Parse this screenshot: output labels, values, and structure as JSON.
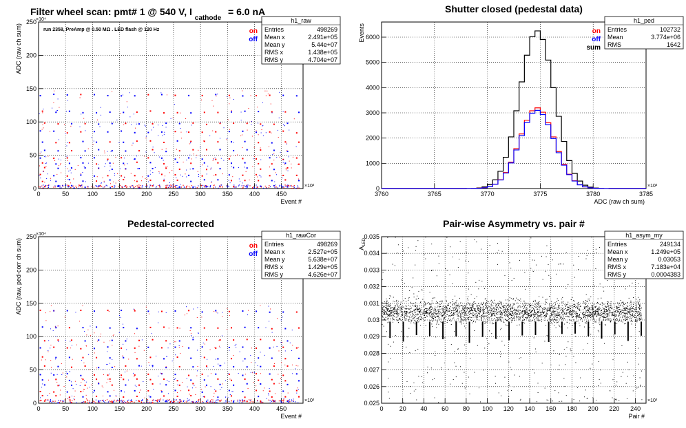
{
  "page": {
    "main_title_prefix": "Filter wheel scan: pmt#   1 @   540 V, I",
    "main_title_sub": "cathode",
    "main_title_suffix": "= 6.0 nA",
    "run_note": "run 2358, PreAmp @ 0.50 MΩ . LED flash @  120 Hz"
  },
  "legend_colors": {
    "on": "#ff0000",
    "off": "#0000ff",
    "sum": "#000000"
  },
  "chart_data": [
    {
      "id": "raw",
      "type": "scatter",
      "title": "",
      "xlabel": "Event #",
      "ylabel": "ADC (raw ch sum)",
      "x_exponent": "×10³",
      "y_exponent": "×10⁴",
      "xlim": [
        0,
        490
      ],
      "ylim": [
        0,
        250
      ],
      "xticks": [
        0,
        50,
        100,
        150,
        200,
        250,
        300,
        350,
        400,
        450
      ],
      "yticks": [
        0,
        50,
        100,
        150,
        200,
        250
      ],
      "grid": true,
      "legend": {
        "position": "top-right",
        "entries": [
          {
            "label": "on",
            "color": "#ff0000"
          },
          {
            "label": "off",
            "color": "#0000ff"
          }
        ]
      },
      "stats": {
        "title": "h1_raw",
        "rows": [
          [
            "Entries",
            "498269"
          ],
          [
            "Mean x",
            "2.491e+05"
          ],
          [
            "Mean y",
            "5.44e+07"
          ],
          [
            "RMS x",
            "1.438e+05"
          ],
          [
            "RMS y",
            "4.704e+07"
          ]
        ]
      },
      "band_levels": [
        140,
        115,
        97,
        85,
        70,
        57,
        45,
        38,
        30,
        20,
        12,
        3
      ],
      "period": 25,
      "series": [
        {
          "name": "on",
          "color": "#ff0000"
        },
        {
          "name": "off",
          "color": "#0000ff"
        }
      ]
    },
    {
      "id": "ped",
      "type": "line",
      "title": "Shutter closed (pedestal data)",
      "xlabel": "ADC (raw ch sum)",
      "ylabel": "Events",
      "x_exponent": "×10³",
      "xlim": [
        3760,
        3785
      ],
      "ylim": [
        0,
        6600
      ],
      "xticks": [
        3760,
        3765,
        3770,
        3775,
        3780,
        3785
      ],
      "yticks": [
        0,
        1000,
        2000,
        3000,
        4000,
        5000,
        6000
      ],
      "grid": true,
      "legend": {
        "position": "top-right",
        "entries": [
          {
            "label": "on",
            "color": "#ff0000"
          },
          {
            "label": "off",
            "color": "#0000ff"
          },
          {
            "label": "sum",
            "color": "#000000"
          }
        ]
      },
      "stats": {
        "title": "h1_ped",
        "rows": [
          [
            "Entries",
            "102732"
          ],
          [
            "Mean",
            "3.774e+06"
          ],
          [
            "RMS",
            "1642"
          ]
        ]
      },
      "gaussian": {
        "mean": 3774.7,
        "sigma": 1.64,
        "peak_sum": 6250,
        "peak_on": 3200,
        "peak_off": 3100,
        "bin_width": 0.5
      },
      "series": [
        {
          "name": "sum",
          "color": "#000000"
        },
        {
          "name": "on",
          "color": "#ff0000"
        },
        {
          "name": "off",
          "color": "#0000ff"
        }
      ]
    },
    {
      "id": "rawCor",
      "type": "scatter",
      "title": "Pedestal-corrected",
      "xlabel": "Event #",
      "ylabel": "ADC (raw, ped-corr ch sum)",
      "x_exponent": "×10³",
      "y_exponent": "×10⁴",
      "xlim": [
        0,
        490
      ],
      "ylim": [
        0,
        250
      ],
      "xticks": [
        0,
        50,
        100,
        150,
        200,
        250,
        300,
        350,
        400,
        450
      ],
      "yticks": [
        0,
        50,
        100,
        150,
        200,
        250
      ],
      "grid": true,
      "legend": {
        "position": "top-right",
        "entries": [
          {
            "label": "on",
            "color": "#ff0000"
          },
          {
            "label": "off",
            "color": "#0000ff"
          }
        ]
      },
      "stats": {
        "title": "h1_rawCor",
        "rows": [
          [
            "Entries",
            "498269"
          ],
          [
            "Mean x",
            "2.527e+05"
          ],
          [
            "Mean y",
            "5.638e+07"
          ],
          [
            "RMS x",
            "1.429e+05"
          ],
          [
            "RMS y",
            "4.626e+07"
          ]
        ]
      },
      "band_levels": [
        138,
        113,
        95,
        83,
        68,
        55,
        43,
        35,
        28,
        18,
        10,
        2
      ],
      "period": 25,
      "series": [
        {
          "name": "on",
          "color": "#ff0000"
        },
        {
          "name": "off",
          "color": "#0000ff"
        }
      ]
    },
    {
      "id": "asym",
      "type": "scatter",
      "title": "Pair-wise Asymmetry vs. pair #",
      "xlabel": "Pair #",
      "ylabel": "A_LED",
      "x_exponent": "×10³",
      "xlim": [
        0,
        250
      ],
      "ylim": [
        0.025,
        0.035
      ],
      "xticks": [
        0,
        20,
        40,
        60,
        80,
        100,
        120,
        140,
        160,
        180,
        200,
        220,
        240
      ],
      "yticks": [
        0.025,
        0.026,
        0.027,
        0.028,
        0.029,
        0.03,
        0.031,
        0.032,
        0.033,
        0.034,
        0.035
      ],
      "grid": true,
      "stats": {
        "title": "h1_asym_my",
        "rows": [
          [
            "Entries",
            "249134"
          ],
          [
            "Mean x",
            "1.249e+05"
          ],
          [
            "Mean y",
            "0.03053"
          ],
          [
            "RMS x",
            "7.183e+04"
          ],
          [
            "RMS y",
            "0.0004383"
          ]
        ]
      },
      "band": {
        "center": 0.0305,
        "half_width": 0.0006
      },
      "dip_period": 12.5,
      "dip_floor": 0.0286,
      "series": [
        {
          "name": "",
          "color": "#000000"
        }
      ]
    }
  ]
}
